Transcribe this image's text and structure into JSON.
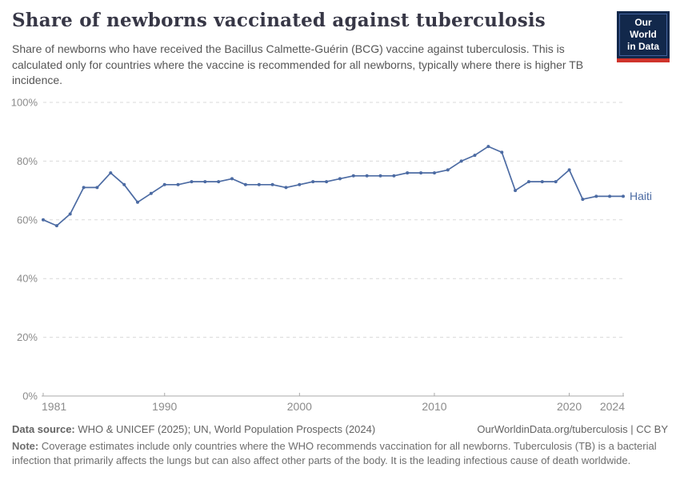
{
  "header": {
    "title": "Share of newborns vaccinated against tuberculosis",
    "subtitle": "Share of newborns who have received the Bacillus Calmette-Guérin (BCG) vaccine against tuberculosis. This is calculated only for countries where the vaccine is recommended for all newborns, typically where there is higher TB incidence.",
    "logo": {
      "line1": "Our World",
      "line2": "in Data",
      "bg_color": "#12284b",
      "bar_color": "#d0342c"
    }
  },
  "chart_data": {
    "type": "line",
    "title": "Share of newborns vaccinated against tuberculosis",
    "xlabel": "",
    "ylabel": "",
    "xlim": [
      1981,
      2024
    ],
    "ylim": [
      0,
      100
    ],
    "grid": "horizontal-dashed",
    "legend_position": "end-of-line",
    "x_ticks": [
      1981,
      1990,
      2000,
      2010,
      2020,
      2024
    ],
    "y_ticks": [
      0,
      20,
      40,
      60,
      80,
      100
    ],
    "y_tick_labels": [
      "0%",
      "20%",
      "40%",
      "60%",
      "80%",
      "100%"
    ],
    "x": [
      1981,
      1982,
      1983,
      1984,
      1985,
      1986,
      1987,
      1988,
      1989,
      1990,
      1991,
      1992,
      1993,
      1994,
      1995,
      1996,
      1997,
      1998,
      1999,
      2000,
      2001,
      2002,
      2003,
      2004,
      2005,
      2006,
      2007,
      2008,
      2009,
      2010,
      2011,
      2012,
      2013,
      2014,
      2015,
      2016,
      2017,
      2018,
      2019,
      2020,
      2021,
      2022,
      2023,
      2024
    ],
    "series": [
      {
        "name": "Haiti",
        "color": "#4c6ba3",
        "values": [
          60,
          58,
          62,
          71,
          71,
          76,
          72,
          66,
          69,
          72,
          72,
          73,
          73,
          73,
          74,
          72,
          72,
          72,
          71,
          72,
          73,
          73,
          74,
          75,
          75,
          75,
          75,
          76,
          76,
          76,
          77,
          80,
          82,
          85,
          83,
          70,
          73,
          73,
          73,
          77,
          67,
          68,
          68,
          68
        ]
      }
    ],
    "colors": {
      "grid": "#d9d9d9",
      "axis": "#a9a9a9",
      "tick_label": "#8b8b8b"
    }
  },
  "footer": {
    "data_source_label": "Data source:",
    "data_source_text": " WHO & UNICEF (2025); UN, World Population Prospects (2024)",
    "attribution": "OurWorldinData.org/tuberculosis | CC BY",
    "note_label": "Note:",
    "note_text": " Coverage estimates include only countries where the WHO recommends vaccination for all newborns. Tuberculosis (TB) is a bacterial infection that primarily affects the lungs but can also affect other parts of the body. It is the leading infectious cause of death worldwide."
  }
}
